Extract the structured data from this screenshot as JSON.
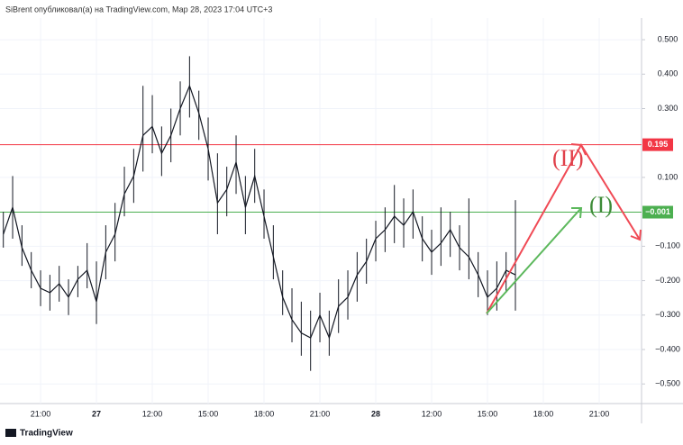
{
  "header": "SiBrent опубликовал(а) на TradingView.com, Мар 28, 2023 17:04 UTC+3",
  "footer": "TradingView",
  "chart_data": {
    "type": "ohlc",
    "color": "#131722",
    "grid": true,
    "categories": [
      null,
      null,
      null,
      null,
      "21:00",
      null,
      null,
      null,
      null,
      null,
      "27",
      null,
      null,
      null,
      null,
      null,
      "12:00",
      null,
      null,
      null,
      null,
      null,
      "15:00",
      null,
      null,
      null,
      null,
      null,
      "18:00",
      null,
      null,
      null,
      null,
      null,
      "21:00",
      null,
      null,
      null,
      null,
      null,
      "28",
      null,
      null,
      null,
      null,
      null,
      "12:00",
      null,
      null,
      null,
      null,
      null,
      "15:00",
      null,
      null,
      null,
      null,
      null,
      "18:00",
      null,
      null,
      null,
      null,
      null,
      "21:00",
      null,
      null,
      null,
      null
    ],
    "close": [
      -0.065,
      0.013,
      -0.104,
      -0.17,
      -0.222,
      -0.235,
      -0.209,
      -0.248,
      -0.196,
      -0.17,
      -0.261,
      -0.117,
      -0.065,
      0.052,
      0.104,
      0.222,
      0.248,
      0.17,
      0.222,
      0.3,
      0.366,
      0.287,
      0.183,
      0.026,
      0.065,
      0.144,
      0.013,
      0.104,
      -0.013,
      -0.131,
      -0.248,
      -0.313,
      -0.352,
      -0.366,
      -0.3,
      -0.366,
      -0.274,
      -0.248,
      -0.183,
      -0.144,
      -0.078,
      -0.052,
      -0.013,
      -0.039,
      0.0,
      -0.078,
      -0.117,
      -0.091,
      -0.052,
      -0.104,
      -0.131,
      -0.183,
      -0.248,
      -0.222,
      -0.17,
      -0.183,
      null,
      null,
      null,
      null,
      null,
      null,
      null,
      null,
      null,
      null,
      null,
      null,
      null
    ],
    "high": [
      0.0,
      0.104,
      -0.039,
      -0.117,
      -0.17,
      -0.183,
      -0.157,
      -0.196,
      -0.157,
      -0.091,
      -0.144,
      -0.039,
      0.026,
      0.131,
      0.183,
      0.366,
      0.339,
      0.248,
      0.3,
      0.379,
      0.452,
      0.352,
      0.274,
      0.17,
      0.131,
      0.222,
      0.104,
      0.183,
      0.065,
      -0.039,
      -0.17,
      -0.222,
      -0.261,
      -0.287,
      -0.235,
      -0.287,
      -0.196,
      -0.17,
      -0.117,
      -0.078,
      -0.026,
      0.013,
      0.078,
      0.039,
      0.065,
      -0.013,
      -0.052,
      0.013,
      0.0,
      -0.039,
      0.039,
      -0.117,
      -0.17,
      -0.144,
      -0.117,
      0.034,
      null,
      null,
      null,
      null,
      null,
      null,
      null,
      null,
      null,
      null,
      null,
      null,
      null
    ],
    "low": [
      -0.104,
      -0.078,
      -0.157,
      -0.222,
      -0.274,
      -0.287,
      -0.261,
      -0.3,
      -0.248,
      -0.222,
      -0.326,
      -0.196,
      -0.144,
      -0.013,
      0.026,
      0.117,
      0.17,
      0.104,
      0.144,
      0.222,
      0.274,
      0.209,
      0.091,
      -0.065,
      -0.013,
      0.052,
      -0.065,
      0.026,
      -0.078,
      -0.196,
      -0.3,
      -0.379,
      -0.418,
      -0.462,
      -0.379,
      -0.418,
      -0.352,
      -0.313,
      -0.261,
      -0.209,
      -0.144,
      -0.117,
      -0.091,
      -0.104,
      -0.078,
      -0.144,
      -0.183,
      -0.157,
      -0.131,
      -0.17,
      -0.196,
      -0.248,
      -0.3,
      -0.287,
      -0.235,
      -0.287,
      null,
      null,
      null,
      null,
      null,
      null,
      null,
      null,
      null,
      null,
      null,
      null,
      null
    ],
    "ylim": [
      -0.557,
      0.563
    ],
    "yticks": [
      {
        "value": 0.5,
        "label": "0.500"
      },
      {
        "value": 0.4,
        "label": "0.400"
      },
      {
        "value": 0.3,
        "label": "0.300"
      },
      {
        "value": 0.1,
        "label": "0.100"
      },
      {
        "value": -0.1,
        "label": "−0.100"
      },
      {
        "value": -0.2,
        "label": "−0.200"
      },
      {
        "value": -0.3,
        "label": "−0.300"
      },
      {
        "value": -0.4,
        "label": "−0.400"
      },
      {
        "value": -0.5,
        "label": "−0.500"
      }
    ],
    "levels": [
      {
        "value": 0.195,
        "color": "#f23645"
      },
      {
        "value": -0.001,
        "label": "−0.001",
        "color": "#4caf50"
      }
    ],
    "annotations": [
      {
        "text": "(II)",
        "color": "#e0404a"
      },
      {
        "text": "(I)",
        "color": "#3d8b37"
      }
    ]
  }
}
